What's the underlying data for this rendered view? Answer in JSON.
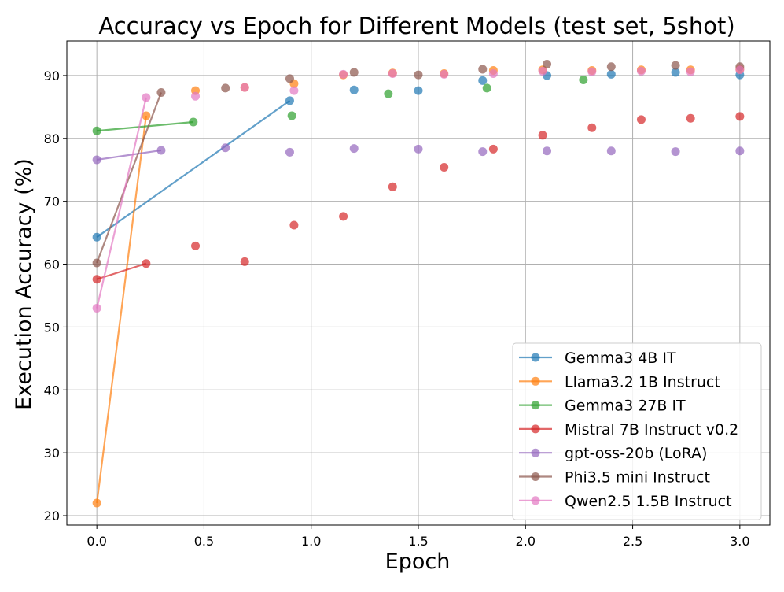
{
  "chart_data": {
    "type": "scatter",
    "title": "Accuracy vs Epoch for Different Models (test set, 5shot)",
    "xlabel": "Epoch",
    "ylabel": "Execution Accuracy (%)",
    "xlim": [
      -0.14,
      3.14
    ],
    "ylim": [
      18.5,
      95.5
    ],
    "xticks": [
      0.0,
      0.5,
      1.0,
      1.5,
      2.0,
      2.5,
      3.0
    ],
    "xtick_labels": [
      "0.0",
      "0.5",
      "1.0",
      "1.5",
      "2.0",
      "2.5",
      "3.0"
    ],
    "yticks": [
      20,
      30,
      40,
      50,
      60,
      70,
      80,
      90
    ],
    "ytick_labels": [
      "20",
      "30",
      "40",
      "50",
      "60",
      "70",
      "80",
      "90"
    ],
    "grid": true,
    "legend_position": "lower-right",
    "series": [
      {
        "name": "Gemma3 4B IT",
        "color": "#1f77b4",
        "line_points": [
          [
            0.0,
            64.3
          ],
          [
            0.9,
            86.0
          ]
        ],
        "x": [
          0.0,
          0.9,
          1.2,
          1.5,
          1.8,
          2.1,
          2.4,
          2.7,
          3.0
        ],
        "y": [
          64.3,
          86.0,
          87.7,
          87.6,
          89.2,
          90.0,
          90.2,
          90.5,
          90.1
        ]
      },
      {
        "name": "Llama3.2 1B Instruct",
        "color": "#ff7f0e",
        "line_points": [
          [
            0.0,
            22.0
          ],
          [
            0.23,
            83.6
          ]
        ],
        "x": [
          0.0,
          0.23,
          0.46,
          0.69,
          0.92,
          1.15,
          1.38,
          1.62,
          1.85,
          2.08,
          2.31,
          2.54,
          2.77,
          3.0
        ],
        "y": [
          22.0,
          83.6,
          87.6,
          88.1,
          88.7,
          90.1,
          90.4,
          90.3,
          90.8,
          90.9,
          90.8,
          90.9,
          90.9,
          91.0
        ]
      },
      {
        "name": "Gemma3 27B IT",
        "color": "#2ca02c",
        "line_points": [
          [
            0.0,
            81.2
          ],
          [
            0.45,
            82.6
          ]
        ],
        "x": [
          0.0,
          0.45,
          0.91,
          1.36,
          1.82,
          2.27
        ],
        "y": [
          81.2,
          82.6,
          83.6,
          87.1,
          88.0,
          89.3
        ]
      },
      {
        "name": "Mistral 7B Instruct v0.2",
        "color": "#d62728",
        "line_points": [
          [
            0.0,
            57.6
          ],
          [
            0.23,
            60.1
          ]
        ],
        "x": [
          0.0,
          0.23,
          0.46,
          0.69,
          0.92,
          1.15,
          1.38,
          1.62,
          1.85,
          2.08,
          2.31,
          2.54,
          2.77,
          3.0
        ],
        "y": [
          57.6,
          60.1,
          62.9,
          60.4,
          66.2,
          67.6,
          72.3,
          75.4,
          78.3,
          80.5,
          81.7,
          83.0,
          83.2,
          83.5
        ]
      },
      {
        "name": "gpt-oss-20b (LoRA)",
        "color": "#9467bd",
        "line_points": [
          [
            0.0,
            76.6
          ],
          [
            0.3,
            78.1
          ]
        ],
        "x": [
          0.0,
          0.3,
          0.6,
          0.9,
          1.2,
          1.5,
          1.8,
          2.1,
          2.4,
          2.7,
          3.0
        ],
        "y": [
          76.6,
          78.1,
          78.5,
          77.8,
          78.4,
          78.3,
          77.9,
          78.0,
          78.0,
          77.9,
          78.0
        ]
      },
      {
        "name": "Phi3.5 mini Instruct",
        "color": "#8c564b",
        "line_points": [
          [
            0.0,
            60.2
          ],
          [
            0.3,
            87.3
          ]
        ],
        "x": [
          0.0,
          0.3,
          0.6,
          0.9,
          1.2,
          1.5,
          1.8,
          2.1,
          2.4,
          2.7,
          3.0
        ],
        "y": [
          60.2,
          87.3,
          88.0,
          89.5,
          90.5,
          90.1,
          91.0,
          91.8,
          91.4,
          91.6,
          91.4
        ]
      },
      {
        "name": "Qwen2.5 1.5B Instruct",
        "color": "#e377c2",
        "line_points": [
          [
            0.0,
            53.0
          ],
          [
            0.23,
            86.5
          ]
        ],
        "x": [
          0.0,
          0.23,
          0.46,
          0.69,
          0.92,
          1.15,
          1.38,
          1.62,
          1.85,
          2.08,
          2.31,
          2.54,
          2.77,
          3.0
        ],
        "y": [
          53.0,
          86.5,
          86.7,
          88.1,
          87.6,
          90.2,
          90.3,
          90.2,
          90.3,
          90.7,
          90.6,
          90.7,
          90.6,
          90.9
        ]
      }
    ]
  }
}
